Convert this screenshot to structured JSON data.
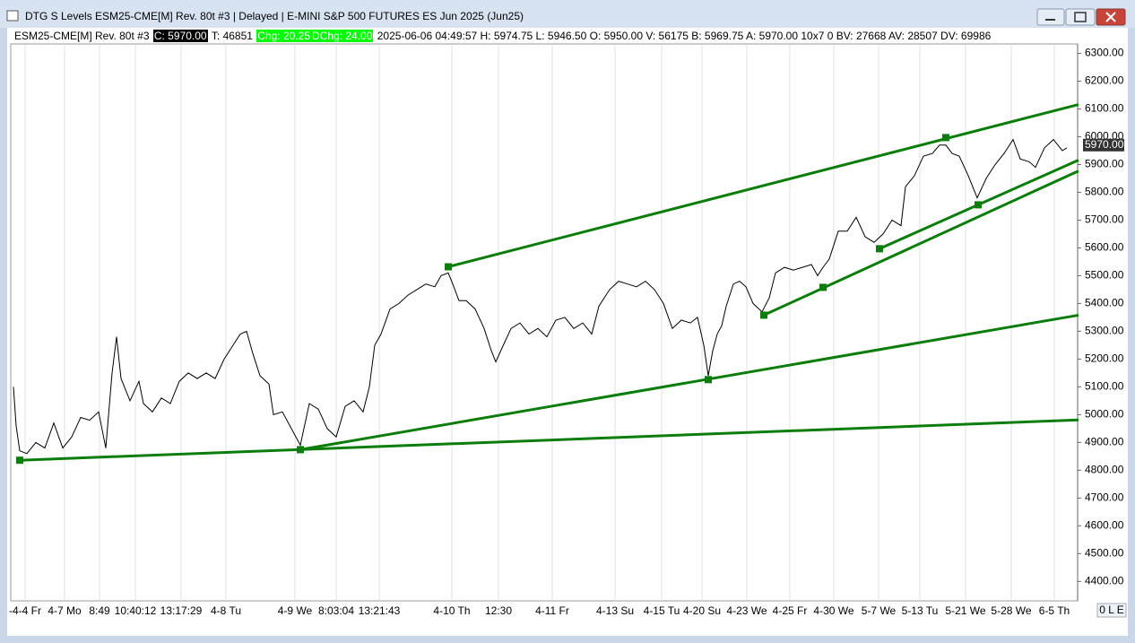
{
  "window": {
    "title": "DTG S Levels ESM25-CME[M]  Rev. 80t #3 | Delayed | E-MINI S&P 500 FUTURES ES Jun 2025 (Jun25)"
  },
  "status_bar": {
    "symbol": "ESM25-CME[M]  Rev. 80t #3",
    "close": "C: 5970.00",
    "ticks": "T: 46851",
    "chg": "Chg: 20.25",
    "dchg": "DChg: 24.00",
    "details": "2025-06-06 04:49:57 H: 5974.75 L: 5946.50 O: 5950.00 V: 56175 B: 5969.75 A: 5970.00 10x7 0 BV: 27668 AV: 28507 DV: 69986"
  },
  "corner_label": "0 L E",
  "chart_data": {
    "type": "line",
    "color": "#000000",
    "x": [
      3,
      6,
      10,
      18,
      28,
      38,
      48,
      58,
      68,
      78,
      88,
      98,
      106,
      113,
      118,
      123,
      133,
      143,
      148,
      158,
      168,
      178,
      188,
      198,
      208,
      218,
      228,
      238,
      248,
      256,
      263,
      270,
      278,
      288,
      293,
      303,
      313,
      323,
      333,
      343,
      353,
      363,
      373,
      383,
      393,
      400,
      406,
      413,
      423,
      433,
      443,
      453,
      463,
      473,
      480,
      488,
      493,
      500,
      508,
      518,
      528,
      536,
      541,
      548,
      558,
      568,
      578,
      588,
      598,
      608,
      618,
      628,
      638,
      648,
      656,
      668,
      678,
      688,
      698,
      708,
      718,
      728,
      738,
      748,
      758,
      766,
      773,
      778,
      783,
      788,
      793,
      798,
      806,
      813,
      820,
      828,
      838,
      846,
      853,
      863,
      873,
      883,
      893,
      900,
      906,
      913,
      923,
      933,
      943,
      953,
      963,
      973,
      983,
      993,
      998,
      1008,
      1018,
      1028,
      1036,
      1043,
      1050,
      1058,
      1068,
      1078,
      1088,
      1098,
      1108,
      1118,
      1126,
      1136,
      1143,
      1153,
      1163,
      1173,
      1178
    ],
    "values": [
      5100,
      4960,
      4870,
      4860,
      4900,
      4880,
      4970,
      4880,
      4920,
      4990,
      4980,
      5010,
      4880,
      5150,
      5280,
      5130,
      5050,
      5120,
      5040,
      5010,
      5060,
      5040,
      5120,
      5150,
      5130,
      5150,
      5130,
      5200,
      5250,
      5290,
      5300,
      5220,
      5140,
      5110,
      5000,
      5010,
      4950,
      4890,
      5040,
      5020,
      4950,
      4920,
      5030,
      5050,
      5010,
      5100,
      5250,
      5290,
      5380,
      5400,
      5430,
      5450,
      5470,
      5460,
      5500,
      5510,
      5470,
      5410,
      5410,
      5380,
      5310,
      5230,
      5190,
      5240,
      5310,
      5330,
      5290,
      5310,
      5280,
      5340,
      5350,
      5310,
      5330,
      5290,
      5390,
      5450,
      5480,
      5470,
      5460,
      5480,
      5450,
      5400,
      5310,
      5340,
      5330,
      5350,
      5250,
      5140,
      5230,
      5290,
      5320,
      5390,
      5470,
      5480,
      5460,
      5400,
      5370,
      5420,
      5510,
      5530,
      5520,
      5530,
      5540,
      5500,
      5530,
      5560,
      5660,
      5660,
      5710,
      5640,
      5620,
      5650,
      5700,
      5680,
      5820,
      5860,
      5930,
      5940,
      5970,
      5970,
      5940,
      5930,
      5860,
      5780,
      5850,
      5900,
      5940,
      5990,
      5920,
      5910,
      5890,
      5960,
      5990,
      5950,
      5960
    ],
    "xlim": [
      0,
      1190
    ],
    "ylim": [
      4330,
      6350
    ],
    "yticks": [
      {
        "value": 4400,
        "label": "4400.00"
      },
      {
        "value": 4500,
        "label": "4500.00"
      },
      {
        "value": 4600,
        "label": "4600.00"
      },
      {
        "value": 4700,
        "label": "4700.00"
      },
      {
        "value": 4800,
        "label": "4800.00"
      },
      {
        "value": 4900,
        "label": "4900.00"
      },
      {
        "value": 5000,
        "label": "5000.00"
      },
      {
        "value": 5100,
        "label": "5100.00"
      },
      {
        "value": 5200,
        "label": "5200.00"
      },
      {
        "value": 5300,
        "label": "5300.00"
      },
      {
        "value": 5400,
        "label": "5400.00"
      },
      {
        "value": 5500,
        "label": "5500.00"
      },
      {
        "value": 5600,
        "label": "5600.00"
      },
      {
        "value": 5700,
        "label": "5700.00"
      },
      {
        "value": 5800,
        "label": "5800.00"
      },
      {
        "value": 5900,
        "label": "5900.00"
      },
      {
        "value": 6000,
        "label": "6000.00"
      },
      {
        "value": 6100,
        "label": "6100.00"
      },
      {
        "value": 6200,
        "label": "6200.00"
      },
      {
        "value": 6300,
        "label": "6300.00"
      }
    ],
    "xticks": [
      {
        "value": 16,
        "label": "-4-4 Fr"
      },
      {
        "value": 60,
        "label": "4-7 Mo"
      },
      {
        "value": 99,
        "label": "8:49"
      },
      {
        "value": 139,
        "label": "10:40:12"
      },
      {
        "value": 190,
        "label": "13:17:29"
      },
      {
        "value": 240,
        "label": "4-8 Tu"
      },
      {
        "value": 317,
        "label": "4-9 We"
      },
      {
        "value": 363,
        "label": "8:03:04"
      },
      {
        "value": 411,
        "label": "13:21:43"
      },
      {
        "value": 492,
        "label": "4-10 Th"
      },
      {
        "value": 544,
        "label": "12:30"
      },
      {
        "value": 604,
        "label": "4-11 Fr"
      },
      {
        "value": 674,
        "label": "4-13 Su"
      },
      {
        "value": 726,
        "label": "4-15 Tu"
      },
      {
        "value": 771,
        "label": "4-20 Su"
      },
      {
        "value": 821,
        "label": "4-23 We"
      },
      {
        "value": 869,
        "label": "4-25 Fr"
      },
      {
        "value": 918,
        "label": "4-30 We"
      },
      {
        "value": 968,
        "label": "5-7 We"
      },
      {
        "value": 1014,
        "label": "5-13 Tu"
      },
      {
        "value": 1065,
        "label": "5-21 We"
      },
      {
        "value": 1116,
        "label": "5-28 We"
      },
      {
        "value": 1164,
        "label": "6-5 Th"
      }
    ],
    "grid": true,
    "trend_color": "#0a7d0a",
    "trend_lines": [
      {
        "x": [
          10,
          1191
        ],
        "values": [
          4836,
          4981
        ]
      },
      {
        "x": [
          323,
          1191
        ],
        "values": [
          4874,
          5358
        ]
      },
      {
        "x": [
          488,
          1191
        ],
        "values": [
          5532,
          6116
        ]
      },
      {
        "x": [
          840,
          1191
        ],
        "values": [
          5358,
          5877
        ]
      },
      {
        "x": [
          969,
          1191
        ],
        "values": [
          5597,
          5916
        ]
      }
    ],
    "anchors": {
      "x": [
        10,
        323,
        488,
        778,
        840,
        906,
        969,
        1043,
        1079
      ],
      "values": [
        4836,
        4874,
        5532,
        5126,
        5358,
        5458,
        5597,
        5997,
        5755
      ]
    },
    "last_price": {
      "value": 5970,
      "label": "5970.00"
    }
  }
}
